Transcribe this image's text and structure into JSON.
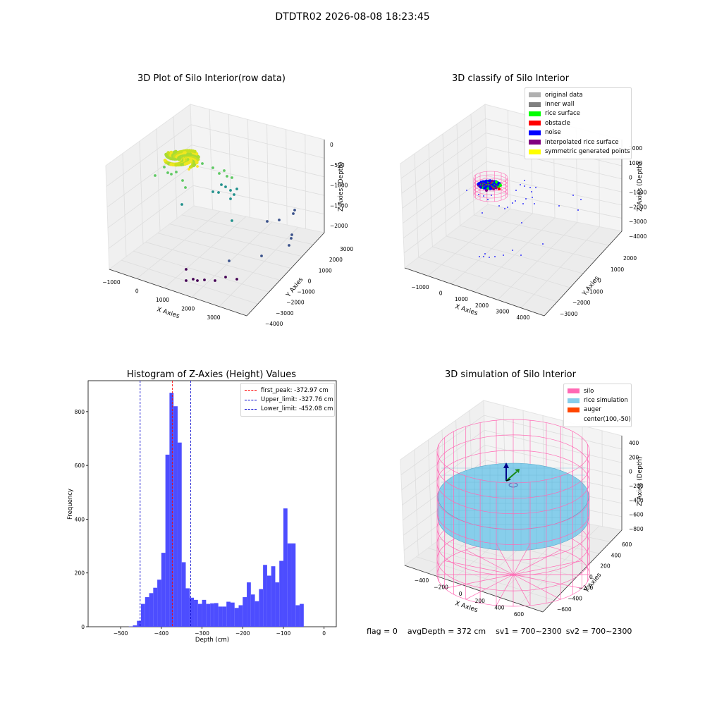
{
  "figure": {
    "title": "DTDTR02 2026-08-08 18:23:45"
  },
  "chart_data": [
    {
      "type": "scatter",
      "title": "3D Plot of Silo Interior(row data)",
      "xlabel": "X Axies",
      "ylabel": "Y Axies",
      "zlabel": "Z Axies (Depth)",
      "x_ticks": [
        "−1000",
        "0",
        "1000",
        "2000",
        "3000"
      ],
      "y_ticks": [
        "−4000",
        "−3000",
        "−2000",
        "−1000",
        "0",
        "1000",
        "2000",
        "3000"
      ],
      "z_ticks": [
        "−2000",
        "−1500",
        "−1000",
        "−500",
        "0"
      ],
      "colormap": "viridis",
      "grid": true
    },
    {
      "type": "scatter",
      "title": "3D classify of Silo Interior",
      "xlabel": "X Axies",
      "ylabel": "Y Axies",
      "zlabel": "Z Axies (Depth)",
      "x_ticks": [
        "−1000",
        "0",
        "1000",
        "2000",
        "3000",
        "4000"
      ],
      "y_ticks": [
        "−3000",
        "−2000",
        "−1000",
        "0",
        "1000",
        "2000"
      ],
      "z_ticks": [
        "−4000",
        "−3000",
        "−2000",
        "−1000",
        "0",
        "1000",
        "2000"
      ],
      "legend_position": "top-right",
      "legend": [
        {
          "label": "original data",
          "color": "#b0b0b0"
        },
        {
          "label": "inner wall",
          "color": "#808080"
        },
        {
          "label": "rice surface",
          "color": "#00ff00"
        },
        {
          "label": "obstacle",
          "color": "#ff0000"
        },
        {
          "label": "noise",
          "color": "#0000ff"
        },
        {
          "label": "interpolated rice surface",
          "color": "#800080"
        },
        {
          "label": "symmetric generated points",
          "color": "#ffff00"
        }
      ],
      "grid": true
    },
    {
      "type": "bar",
      "title": "Histogram of Z-Axies (Height) Values",
      "xlabel": "Depth (cm)",
      "ylabel": "Frequency",
      "xlim": [
        -580,
        30
      ],
      "ylim": [
        0,
        915
      ],
      "x_ticks": [
        -500,
        -400,
        -300,
        -200,
        -100,
        0
      ],
      "y_ticks": [
        0,
        200,
        400,
        600,
        800
      ],
      "bin_width": 10,
      "bins": [
        {
          "x": -540,
          "v": 0
        },
        {
          "x": -530,
          "v": 0
        },
        {
          "x": -520,
          "v": 0
        },
        {
          "x": -510,
          "v": 0
        },
        {
          "x": -500,
          "v": 0
        },
        {
          "x": -490,
          "v": 0
        },
        {
          "x": -480,
          "v": 1
        },
        {
          "x": -470,
          "v": 5
        },
        {
          "x": -460,
          "v": 22
        },
        {
          "x": -450,
          "v": 85
        },
        {
          "x": -440,
          "v": 110
        },
        {
          "x": -430,
          "v": 125
        },
        {
          "x": -420,
          "v": 145
        },
        {
          "x": -410,
          "v": 175
        },
        {
          "x": -400,
          "v": 275
        },
        {
          "x": -390,
          "v": 640
        },
        {
          "x": -380,
          "v": 870
        },
        {
          "x": -370,
          "v": 820
        },
        {
          "x": -360,
          "v": 685
        },
        {
          "x": -350,
          "v": 240
        },
        {
          "x": -340,
          "v": 143
        },
        {
          "x": -330,
          "v": 108
        },
        {
          "x": -320,
          "v": 100
        },
        {
          "x": -310,
          "v": 85
        },
        {
          "x": -300,
          "v": 100
        },
        {
          "x": -290,
          "v": 85
        },
        {
          "x": -280,
          "v": 87
        },
        {
          "x": -270,
          "v": 88
        },
        {
          "x": -260,
          "v": 75
        },
        {
          "x": -250,
          "v": 75
        },
        {
          "x": -240,
          "v": 93
        },
        {
          "x": -230,
          "v": 90
        },
        {
          "x": -220,
          "v": 70
        },
        {
          "x": -210,
          "v": 80
        },
        {
          "x": -200,
          "v": 110
        },
        {
          "x": -190,
          "v": 165
        },
        {
          "x": -180,
          "v": 120
        },
        {
          "x": -170,
          "v": 95
        },
        {
          "x": -160,
          "v": 140
        },
        {
          "x": -150,
          "v": 230
        },
        {
          "x": -140,
          "v": 190
        },
        {
          "x": -130,
          "v": 225
        },
        {
          "x": -120,
          "v": 165
        },
        {
          "x": -110,
          "v": 245
        },
        {
          "x": -100,
          "v": 440
        },
        {
          "x": -90,
          "v": 310
        },
        {
          "x": -80,
          "v": 310
        },
        {
          "x": -70,
          "v": 80
        },
        {
          "x": -60,
          "v": 85
        }
      ],
      "bar_color": "#4d4dff",
      "vlines": [
        {
          "label": "first_peak: -372.97 cm",
          "x": -372.97,
          "color": "#ff0000"
        },
        {
          "label": "Upper_limit: -327.76 cm",
          "x": -327.76,
          "color": "#0000cc"
        },
        {
          "label": "Lower_limit: -452.08 cm",
          "x": -452.08,
          "color": "#0000cc"
        }
      ],
      "legend_position": "top-right"
    },
    {
      "type": "surface",
      "title": "3D simulation of Silo Interior",
      "xlabel": "X Axies",
      "ylabel": "Y Axies",
      "zlabel": "Z Axies (Depth)",
      "x_ticks": [
        "−400",
        "−200",
        "0",
        "200",
        "400",
        "600"
      ],
      "y_ticks": [
        "−600",
        "−400",
        "−200",
        "0",
        "200",
        "400",
        "600"
      ],
      "z_ticks": [
        "−800",
        "−600",
        "−400",
        "−200",
        "0",
        "200",
        "400"
      ],
      "legend_position": "top-right",
      "legend": [
        {
          "label": "silo",
          "color": "#ff69b4"
        },
        {
          "label": "rice simulation",
          "color": "#87ceeb"
        },
        {
          "label": "auger",
          "color": "#ff4500"
        },
        {
          "label": "center(100,-50)",
          "color": ""
        }
      ],
      "grid": true
    }
  ],
  "status": {
    "flag": "flag = 0",
    "avg_depth": "avgDepth = 372 cm",
    "sv1": "sv1 = 700~2300",
    "sv2": "sv2 = 700~2300"
  }
}
